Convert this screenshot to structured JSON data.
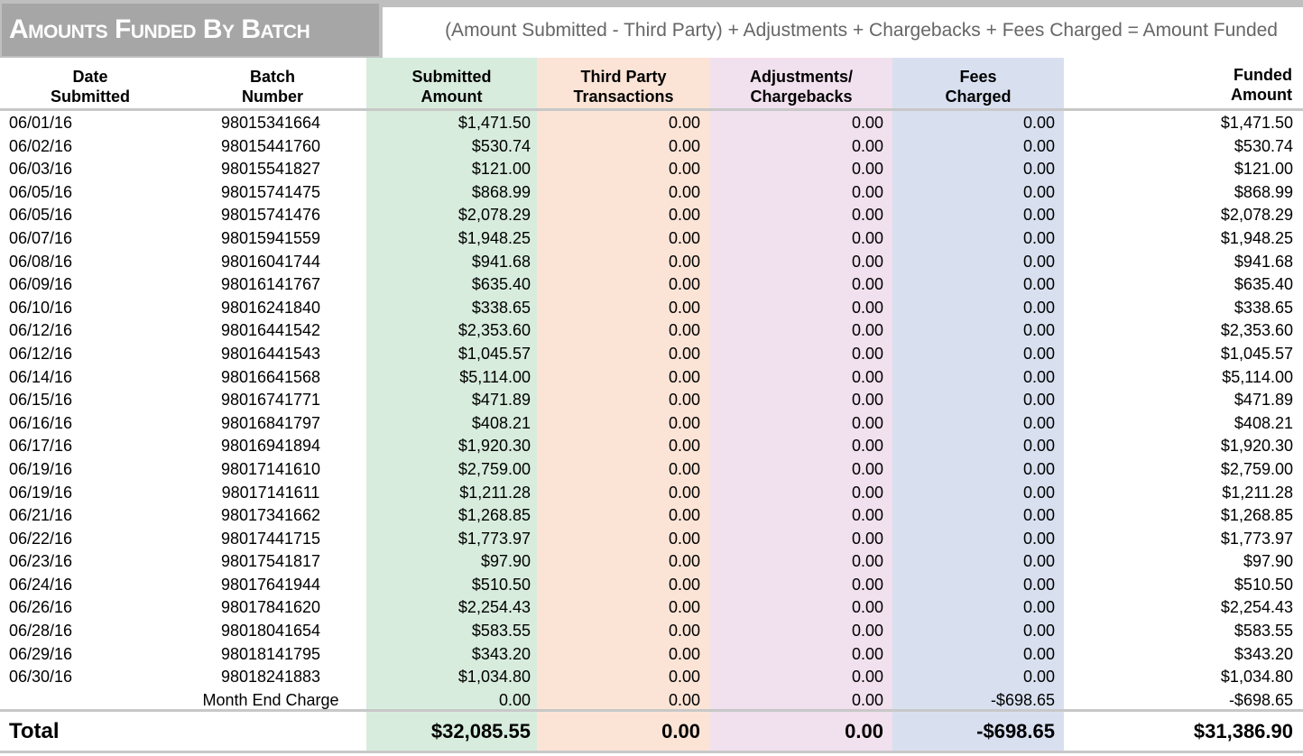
{
  "header": {
    "title": "Amounts Funded By Batch",
    "formula": "(Amount Submitted - Third Party) + Adjustments + Chargebacks + Fees Charged = Amount Funded"
  },
  "columns": {
    "date": [
      "Date",
      "Submitted"
    ],
    "batch": [
      "Batch",
      "Number"
    ],
    "submitted": [
      "Submitted",
      "Amount"
    ],
    "third_party": [
      "Third Party",
      "Transactions"
    ],
    "adjustments": [
      "Adjustments/",
      "Chargebacks"
    ],
    "fees": [
      "Fees",
      "Charged"
    ],
    "funded": [
      "Funded",
      "Amount"
    ]
  },
  "rows": [
    {
      "date": "06/01/16",
      "batch": "98015341664",
      "submitted": "$1,471.50",
      "third_party": "0.00",
      "adjustments": "0.00",
      "fees": "0.00",
      "funded": "$1,471.50"
    },
    {
      "date": "06/02/16",
      "batch": "98015441760",
      "submitted": "$530.74",
      "third_party": "0.00",
      "adjustments": "0.00",
      "fees": "0.00",
      "funded": "$530.74"
    },
    {
      "date": "06/03/16",
      "batch": "98015541827",
      "submitted": "$121.00",
      "third_party": "0.00",
      "adjustments": "0.00",
      "fees": "0.00",
      "funded": "$121.00"
    },
    {
      "date": "06/05/16",
      "batch": "98015741475",
      "submitted": "$868.99",
      "third_party": "0.00",
      "adjustments": "0.00",
      "fees": "0.00",
      "funded": "$868.99"
    },
    {
      "date": "06/05/16",
      "batch": "98015741476",
      "submitted": "$2,078.29",
      "third_party": "0.00",
      "adjustments": "0.00",
      "fees": "0.00",
      "funded": "$2,078.29"
    },
    {
      "date": "06/07/16",
      "batch": "98015941559",
      "submitted": "$1,948.25",
      "third_party": "0.00",
      "adjustments": "0.00",
      "fees": "0.00",
      "funded": "$1,948.25"
    },
    {
      "date": "06/08/16",
      "batch": "98016041744",
      "submitted": "$941.68",
      "third_party": "0.00",
      "adjustments": "0.00",
      "fees": "0.00",
      "funded": "$941.68"
    },
    {
      "date": "06/09/16",
      "batch": "98016141767",
      "submitted": "$635.40",
      "third_party": "0.00",
      "adjustments": "0.00",
      "fees": "0.00",
      "funded": "$635.40"
    },
    {
      "date": "06/10/16",
      "batch": "98016241840",
      "submitted": "$338.65",
      "third_party": "0.00",
      "adjustments": "0.00",
      "fees": "0.00",
      "funded": "$338.65"
    },
    {
      "date": "06/12/16",
      "batch": "98016441542",
      "submitted": "$2,353.60",
      "third_party": "0.00",
      "adjustments": "0.00",
      "fees": "0.00",
      "funded": "$2,353.60"
    },
    {
      "date": "06/12/16",
      "batch": "98016441543",
      "submitted": "$1,045.57",
      "third_party": "0.00",
      "adjustments": "0.00",
      "fees": "0.00",
      "funded": "$1,045.57"
    },
    {
      "date": "06/14/16",
      "batch": "98016641568",
      "submitted": "$5,114.00",
      "third_party": "0.00",
      "adjustments": "0.00",
      "fees": "0.00",
      "funded": "$5,114.00"
    },
    {
      "date": "06/15/16",
      "batch": "98016741771",
      "submitted": "$471.89",
      "third_party": "0.00",
      "adjustments": "0.00",
      "fees": "0.00",
      "funded": "$471.89"
    },
    {
      "date": "06/16/16",
      "batch": "98016841797",
      "submitted": "$408.21",
      "third_party": "0.00",
      "adjustments": "0.00",
      "fees": "0.00",
      "funded": "$408.21"
    },
    {
      "date": "06/17/16",
      "batch": "98016941894",
      "submitted": "$1,920.30",
      "third_party": "0.00",
      "adjustments": "0.00",
      "fees": "0.00",
      "funded": "$1,920.30"
    },
    {
      "date": "06/19/16",
      "batch": "98017141610",
      "submitted": "$2,759.00",
      "third_party": "0.00",
      "adjustments": "0.00",
      "fees": "0.00",
      "funded": "$2,759.00"
    },
    {
      "date": "06/19/16",
      "batch": "98017141611",
      "submitted": "$1,211.28",
      "third_party": "0.00",
      "adjustments": "0.00",
      "fees": "0.00",
      "funded": "$1,211.28"
    },
    {
      "date": "06/21/16",
      "batch": "98017341662",
      "submitted": "$1,268.85",
      "third_party": "0.00",
      "adjustments": "0.00",
      "fees": "0.00",
      "funded": "$1,268.85"
    },
    {
      "date": "06/22/16",
      "batch": "98017441715",
      "submitted": "$1,773.97",
      "third_party": "0.00",
      "adjustments": "0.00",
      "fees": "0.00",
      "funded": "$1,773.97"
    },
    {
      "date": "06/23/16",
      "batch": "98017541817",
      "submitted": "$97.90",
      "third_party": "0.00",
      "adjustments": "0.00",
      "fees": "0.00",
      "funded": "$97.90"
    },
    {
      "date": "06/24/16",
      "batch": "98017641944",
      "submitted": "$510.50",
      "third_party": "0.00",
      "adjustments": "0.00",
      "fees": "0.00",
      "funded": "$510.50"
    },
    {
      "date": "06/26/16",
      "batch": "98017841620",
      "submitted": "$2,254.43",
      "third_party": "0.00",
      "adjustments": "0.00",
      "fees": "0.00",
      "funded": "$2,254.43"
    },
    {
      "date": "06/28/16",
      "batch": "98018041654",
      "submitted": "$583.55",
      "third_party": "0.00",
      "adjustments": "0.00",
      "fees": "0.00",
      "funded": "$583.55"
    },
    {
      "date": "06/29/16",
      "batch": "98018141795",
      "submitted": "$343.20",
      "third_party": "0.00",
      "adjustments": "0.00",
      "fees": "0.00",
      "funded": "$343.20"
    },
    {
      "date": "06/30/16",
      "batch": "98018241883",
      "submitted": "$1,034.80",
      "third_party": "0.00",
      "adjustments": "0.00",
      "fees": "0.00",
      "funded": "$1,034.80"
    },
    {
      "date": "",
      "batch": "Month End Charge",
      "submitted": "0.00",
      "third_party": "0.00",
      "adjustments": "0.00",
      "fees": "-$698.65",
      "funded": "-$698.65"
    }
  ],
  "total": {
    "label": "Total",
    "submitted": "$32,085.55",
    "third_party": "0.00",
    "adjustments": "0.00",
    "fees": "-$698.65",
    "funded": "$31,386.90"
  }
}
